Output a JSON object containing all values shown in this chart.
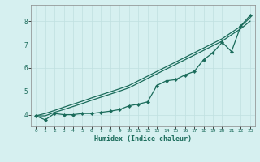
{
  "xlabel": "Humidex (Indice chaleur)",
  "bg_color": "#d6f0f0",
  "grid_color": "#c0e0e0",
  "line_color": "#1a6b5a",
  "xlim": [
    -0.5,
    23.5
  ],
  "ylim": [
    3.5,
    8.7
  ],
  "xticks": [
    0,
    1,
    2,
    3,
    4,
    5,
    6,
    7,
    8,
    9,
    10,
    11,
    12,
    13,
    14,
    15,
    16,
    17,
    18,
    19,
    20,
    21,
    22,
    23
  ],
  "yticks": [
    4,
    5,
    6,
    7,
    8
  ],
  "x": [
    0,
    1,
    2,
    3,
    4,
    5,
    6,
    7,
    8,
    9,
    10,
    11,
    12,
    13,
    14,
    15,
    16,
    17,
    18,
    19,
    20,
    21,
    22,
    23
  ],
  "line1_y": [
    3.95,
    3.78,
    4.05,
    4.0,
    4.0,
    4.05,
    4.05,
    4.1,
    4.15,
    4.22,
    4.38,
    4.45,
    4.55,
    5.25,
    5.45,
    5.5,
    5.7,
    5.85,
    6.35,
    6.65,
    7.1,
    6.7,
    7.8,
    8.25
  ],
  "line2_y": [
    3.95,
    3.95,
    4.1,
    4.22,
    4.35,
    4.48,
    4.62,
    4.75,
    4.88,
    5.01,
    5.15,
    5.35,
    5.55,
    5.75,
    5.95,
    6.15,
    6.35,
    6.55,
    6.75,
    6.95,
    7.15,
    7.42,
    7.68,
    8.0
  ],
  "line3_y": [
    3.95,
    4.05,
    4.18,
    4.32,
    4.45,
    4.58,
    4.72,
    4.85,
    4.98,
    5.11,
    5.25,
    5.45,
    5.65,
    5.85,
    6.05,
    6.25,
    6.45,
    6.65,
    6.85,
    7.05,
    7.25,
    7.52,
    7.78,
    8.15
  ]
}
